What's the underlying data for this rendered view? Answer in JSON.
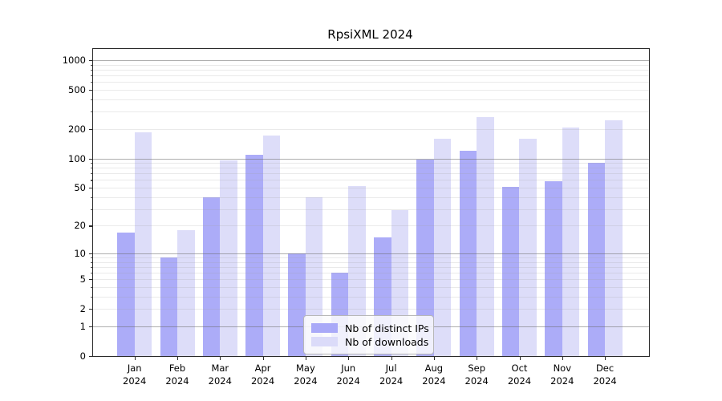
{
  "title": "RpsiXML 2024",
  "colors": {
    "distinct_ips_bar": "#a9a9f8",
    "downloads_bar": "#dbdbf9",
    "major_gridline": "#b0b0b0",
    "minor_gridline": "#e9e9e9",
    "axis": "#2b2b2b"
  },
  "legend": {
    "items": [
      {
        "label": "Nb of distinct IPs",
        "color": "#a9a9f8"
      },
      {
        "label": "Nb of downloads",
        "color": "#dbdbf9"
      }
    ]
  },
  "chart_data": {
    "type": "bar",
    "title": "RpsiXML 2024",
    "categories": [
      "Jan 2024",
      "Feb 2024",
      "Mar 2024",
      "Apr 2024",
      "May 2024",
      "Jun 2024",
      "Jul 2024",
      "Aug 2024",
      "Sep 2024",
      "Oct 2024",
      "Nov 2024",
      "Dec 2024"
    ],
    "series": [
      {
        "name": "Nb of distinct IPs",
        "color": "#a9a9f8",
        "values": [
          17,
          9,
          40,
          110,
          10,
          6,
          15,
          97,
          120,
          51,
          58,
          90
        ]
      },
      {
        "name": "Nb of downloads",
        "color": "#dbdbf9",
        "values": [
          185,
          18,
          95,
          170,
          40,
          52,
          29,
          158,
          265,
          158,
          205,
          247
        ]
      }
    ],
    "xlabel": "",
    "ylabel": "",
    "scale": "log10(value+1)",
    "y_tick_labels": [
      0,
      1,
      2,
      5,
      10,
      20,
      50,
      100,
      200,
      500,
      1000
    ],
    "y_major_gridlines": [
      1,
      10,
      100,
      1000
    ],
    "y_minor_gridlines": [
      1,
      2,
      3,
      4,
      5,
      6,
      7,
      8,
      9,
      20,
      30,
      40,
      50,
      60,
      70,
      80,
      90,
      200,
      300,
      400,
      500,
      600,
      700,
      800,
      900
    ],
    "ylim": [
      0,
      1300
    ],
    "grid": true,
    "legend_position": "lower-center"
  }
}
